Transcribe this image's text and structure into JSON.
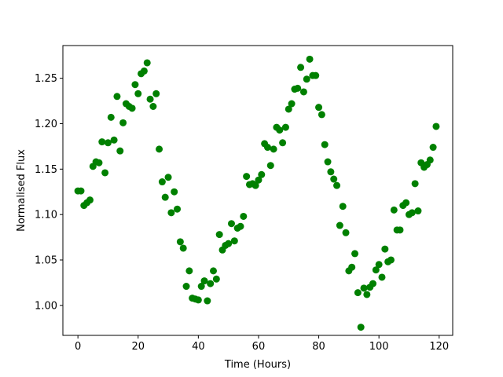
{
  "chart_data": {
    "type": "scatter",
    "title": "",
    "xlabel": "Time (Hours)",
    "ylabel": "Normalised Flux",
    "xlim": [
      -5,
      124.5
    ],
    "ylim": [
      0.967,
      1.286
    ],
    "xticks": [
      0,
      20,
      40,
      60,
      80,
      100,
      120
    ],
    "xtick_labels": [
      "0",
      "20",
      "40",
      "60",
      "80",
      "100",
      "120"
    ],
    "yticks": [
      1.0,
      1.05,
      1.1,
      1.15,
      1.2,
      1.25
    ],
    "ytick_labels": [
      "1.00",
      "1.05",
      "1.10",
      "1.15",
      "1.20",
      "1.25"
    ],
    "grid": false,
    "marker_color": "#008000",
    "series": [
      {
        "x": [
          0,
          1,
          2,
          3,
          4,
          5,
          6,
          7,
          8,
          9,
          10,
          11,
          12,
          13,
          14,
          15,
          16,
          17,
          18,
          19,
          20,
          21,
          22,
          23,
          24,
          25,
          26,
          27,
          28,
          29,
          30,
          31,
          32,
          33,
          34,
          35,
          36,
          37,
          38,
          39,
          40,
          41,
          42,
          43,
          44,
          45,
          46,
          47,
          48,
          49,
          50,
          51,
          52,
          53,
          54,
          55,
          56,
          57,
          58,
          59,
          60,
          61,
          62,
          63,
          64,
          65,
          66,
          67,
          68,
          69,
          70,
          71,
          72,
          73,
          74,
          75,
          76,
          77,
          78,
          79,
          80,
          81,
          82,
          83,
          84,
          85,
          86,
          87,
          88,
          89,
          90,
          91,
          92,
          93,
          94,
          95,
          96,
          97,
          98,
          99,
          100,
          101,
          102,
          103,
          104,
          105,
          106,
          107,
          108,
          109,
          110,
          111,
          112,
          113,
          114,
          115,
          116,
          117,
          118,
          119
        ],
        "y": [
          1.126,
          1.126,
          1.11,
          1.113,
          1.116,
          1.153,
          1.158,
          1.157,
          1.18,
          1.146,
          1.179,
          1.207,
          1.182,
          1.23,
          1.17,
          1.201,
          1.222,
          1.219,
          1.217,
          1.243,
          1.233,
          1.255,
          1.258,
          1.267,
          1.227,
          1.219,
          1.233,
          1.172,
          1.136,
          1.119,
          1.141,
          1.102,
          1.125,
          1.106,
          1.07,
          1.063,
          1.021,
          1.038,
          1.008,
          1.007,
          1.006,
          1.021,
          1.027,
          1.005,
          1.024,
          1.038,
          1.029,
          1.078,
          1.061,
          1.066,
          1.068,
          1.09,
          1.071,
          1.085,
          1.087,
          1.098,
          1.142,
          1.133,
          1.134,
          1.132,
          1.138,
          1.144,
          1.178,
          1.174,
          1.154,
          1.172,
          1.196,
          1.193,
          1.179,
          1.196,
          1.216,
          1.222,
          1.238,
          1.239,
          1.262,
          1.235,
          1.249,
          1.271,
          1.253,
          1.253,
          1.218,
          1.21,
          1.177,
          1.158,
          1.147,
          1.139,
          1.132,
          1.088,
          1.109,
          1.08,
          1.038,
          1.042,
          1.057,
          1.014,
          0.976,
          1.019,
          1.012,
          1.02,
          1.024,
          1.039,
          1.045,
          1.031,
          1.062,
          1.048,
          1.05,
          1.105,
          1.083,
          1.083,
          1.11,
          1.113,
          1.1,
          1.102,
          1.134,
          1.104,
          1.157,
          1.152,
          1.155,
          1.16,
          1.174,
          1.197
        ]
      }
    ]
  }
}
